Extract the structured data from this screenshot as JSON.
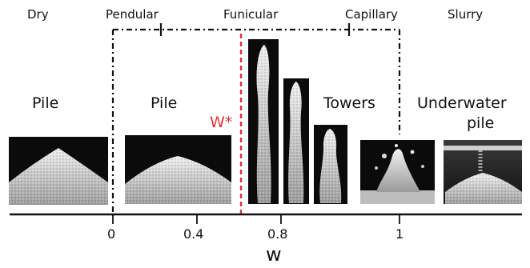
{
  "regimes": {
    "dry": "Dry",
    "pendular": "Pendular",
    "funicular": "Funicular",
    "capillary": "Capillary",
    "slurry": "Slurry"
  },
  "structures": {
    "pile_dry": "Pile",
    "pile_wet": "Pile",
    "towers": "Towers",
    "underwater_1": "Underwater",
    "underwater_2": "pile"
  },
  "critical_label": "W*",
  "axis": {
    "label": "w",
    "ticks": [
      "0",
      "0.4",
      "0.8",
      "1"
    ]
  },
  "colors": {
    "critical": "#e0303a",
    "photo_bg": "#0b0b0b",
    "sand": "#d6d6d6"
  }
}
